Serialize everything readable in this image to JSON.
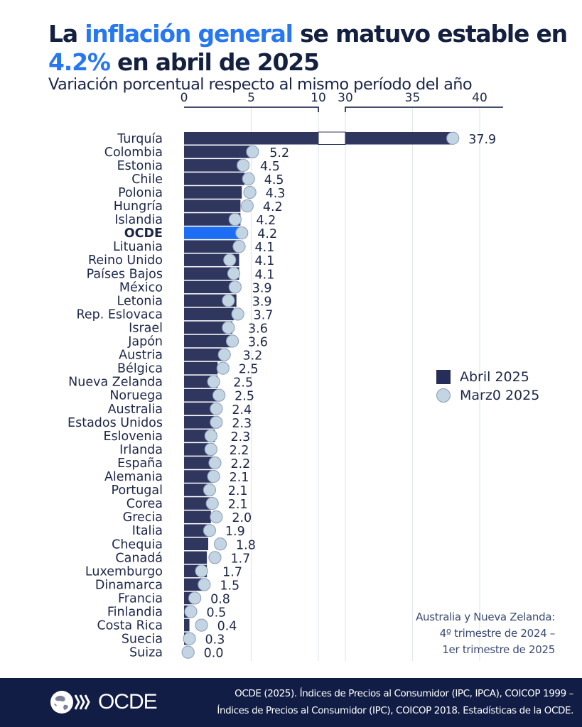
{
  "header": {
    "title_part1": "La ",
    "title_highlight1": "inflación general",
    "title_part2": " se matuvo estable en ",
    "title_highlight2": "4.2%",
    "title_part3": " en abril de 2025",
    "subtitle": "Variación porcentual respecto al mismo período del año",
    "highlight_color": "#2677f0"
  },
  "legend": {
    "april_label": "Abril 2025",
    "march_label": "Marz0 2025"
  },
  "note": {
    "line1": "Australia y Nueva Zelanda:",
    "line2": "4º trimestre de 2024 –",
    "line3": "1er trimestre de 2025"
  },
  "footer": {
    "logo_text": "OCDE",
    "source_line1": "OCDE (2025). Índices de Precios al Consumidor (IPC, IPCA), COICOP 1999 –",
    "source_line2": "Índices de Precios al Consumidor (IPC), COICOP 2018. Estadísticas de la OCDE."
  },
  "colors": {
    "bar": "#2f375f",
    "highlight_bar": "#1d6ef5",
    "marker": "#c3d5e3",
    "marker_stroke": "#8a9bb8",
    "text": "#1c2748"
  },
  "chart_data": {
    "type": "bar",
    "orientation": "horizontal",
    "title": "La inflación general se matuvo estable en 4.2% en abril de 2025",
    "subtitle": "Variación porcentual respecto al mismo período del año",
    "xlabel": "",
    "ylabel": "",
    "x_axis": {
      "position": "top",
      "broken": true,
      "segments": [
        [
          0,
          10
        ],
        [
          30,
          41
        ]
      ],
      "ticks": [
        0,
        5,
        10,
        30,
        35,
        40
      ],
      "tick_labels": [
        "0",
        "5",
        "10",
        "30",
        "35",
        "40"
      ]
    },
    "grid": true,
    "legend_position": "right",
    "highlight_category": "OCDE",
    "categories": [
      "Turquía",
      "Colombia",
      "Estonia",
      "Chile",
      "Polonia",
      "Hungría",
      "Islandia",
      "OCDE",
      "Lituania",
      "Reino Unido",
      "Países Bajos",
      "México",
      "Letonia",
      "Rep. Eslovaca",
      "Israel",
      "Japón",
      "Austria",
      "Bélgica",
      "Nueva Zelanda",
      "Noruega",
      "Australia",
      "Estados Unidos",
      "Eslovenia",
      "Irlanda",
      "España",
      "Alemania",
      "Portugal",
      "Corea",
      "Grecia",
      "Italia",
      "Chequia",
      "Canadá",
      "Luxemburgo",
      "Dinamarca",
      "Francia",
      "Finlandia",
      "Costa Rica",
      "Suecia",
      "Suiza"
    ],
    "series": [
      {
        "name": "Abril 2025",
        "mark": "bar",
        "values": [
          37.9,
          5.2,
          4.5,
          4.5,
          4.3,
          4.2,
          4.2,
          4.2,
          4.1,
          4.1,
          4.1,
          3.9,
          3.9,
          3.7,
          3.6,
          3.6,
          3.2,
          2.5,
          2.5,
          2.5,
          2.4,
          2.3,
          2.3,
          2.2,
          2.2,
          2.1,
          2.1,
          2.1,
          2.0,
          1.9,
          1.8,
          1.7,
          1.7,
          1.5,
          0.8,
          0.5,
          0.4,
          0.3,
          0.0
        ]
      },
      {
        "name": "Marz0 2025",
        "mark": "circle",
        "values": [
          38.0,
          5.1,
          4.4,
          4.8,
          4.9,
          4.7,
          3.8,
          4.3,
          4.1,
          3.4,
          3.7,
          3.8,
          3.3,
          4.0,
          3.3,
          3.6,
          3.0,
          2.9,
          2.2,
          2.6,
          2.4,
          2.4,
          2.0,
          2.0,
          2.3,
          2.2,
          1.9,
          2.1,
          2.4,
          1.9,
          2.7,
          2.3,
          1.3,
          1.5,
          0.8,
          0.5,
          1.3,
          0.4,
          0.3
        ]
      }
    ],
    "data_labels": [
      "37.9",
      "5.2",
      "4.5",
      "4.5",
      "4.3",
      "4.2",
      "4.2",
      "4.2",
      "4.1",
      "4.1",
      "4.1",
      "3.9",
      "3.9",
      "3.7",
      "3.6",
      "3.6",
      "3.2",
      "2.5",
      "2.5",
      "2.5",
      "2.4",
      "2.3",
      "2.3",
      "2.2",
      "2.2",
      "2.1",
      "2.1",
      "2.1",
      "2.0",
      "1.9",
      "1.8",
      "1.7",
      "1.7",
      "1.5",
      "0.8",
      "0.5",
      "0.4",
      "0.3",
      "0.0"
    ]
  }
}
